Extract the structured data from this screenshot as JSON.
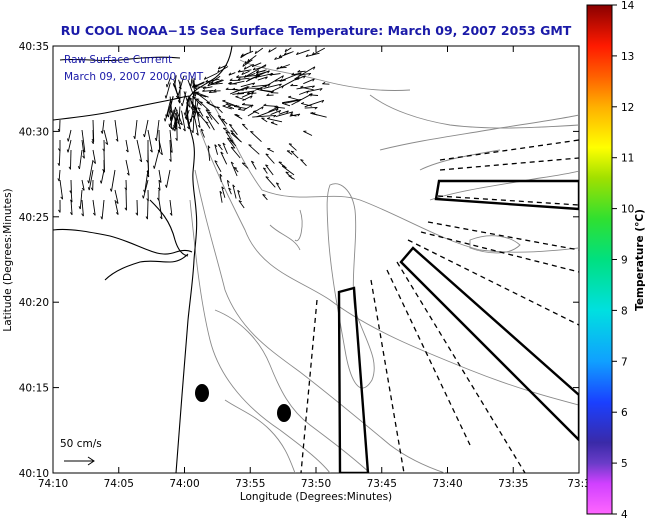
{
  "title": "RU COOL  NOAA−15  Sea Surface Temperature:  March 09, 2007 2053 GMT",
  "overlay": {
    "line1": "Raw Surface Current",
    "line2": "March 09, 2007 2000 GMT"
  },
  "axes": {
    "xlabel": "Longitude (Degrees:Minutes)",
    "ylabel": "Latitude (Degrees:Minutes)",
    "x_ticks": [
      "74:10",
      "74:05",
      "74:00",
      "73:55",
      "73:50",
      "73:45",
      "73:40",
      "73:35",
      "73:3"
    ],
    "y_ticks": [
      "40:35",
      "40:30",
      "40:25",
      "40:20",
      "40:15",
      "40:10"
    ]
  },
  "scale": {
    "label": "50 cm/s"
  },
  "colorbar": {
    "label": "Temperature (°C)",
    "ticks": [
      "14",
      "13",
      "12",
      "11",
      "10",
      "9",
      "8",
      "7",
      "6",
      "5",
      "4"
    ],
    "min": 4,
    "max": 14
  }
}
